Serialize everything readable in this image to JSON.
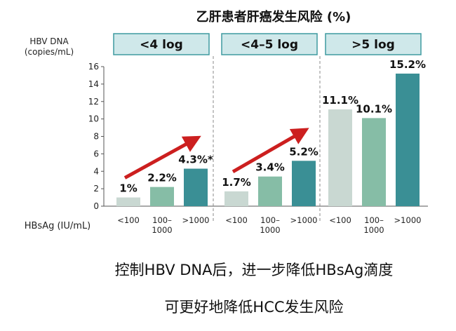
{
  "chart_data": {
    "type": "bar",
    "title": "乙肝患者肝癌发生风险 (%)",
    "ylabel": "HBV DNA\n(copies/mL)",
    "xlabel": "HBsAg (IU/mL)",
    "ylim": [
      0,
      16
    ],
    "yticks": [
      "0",
      "2",
      "4",
      "6",
      "8",
      "10",
      "12",
      "14",
      "16"
    ],
    "groups": [
      {
        "label": "<4 log",
        "categories": [
          "<100",
          "100–\n1000",
          ">1000"
        ],
        "values": [
          1,
          2.2,
          4.3
        ],
        "value_labels": [
          "1%",
          "2.2%",
          "4.3%*"
        ],
        "trend_arrow": true
      },
      {
        "label": "<4–5 log",
        "categories": [
          "<100",
          "100–\n1000",
          ">1000"
        ],
        "values": [
          1.7,
          3.4,
          5.2
        ],
        "value_labels": [
          "1.7%",
          "3.4%",
          "5.2%"
        ],
        "trend_arrow": true
      },
      {
        "label": ">5 log",
        "categories": [
          "<100",
          "100–\n1000",
          ">1000"
        ],
        "values": [
          11.1,
          10.1,
          15.2
        ],
        "value_labels": [
          "11.1%",
          "10.1%",
          "15.2%"
        ],
        "trend_arrow": false
      }
    ],
    "colors": {
      "low": "#c9d8d2",
      "mid": "#86bda6",
      "high": "#3a8f95",
      "group_header_bg": "#cfe8ea",
      "group_header_border": "#3f9aa0",
      "arrow": "#cc1f1f"
    },
    "grid": false
  },
  "caption": {
    "line1": "控制HBV DNA后，进一步降低HBsAg滴度",
    "line2": "可更好地降低HCC发生风险"
  }
}
